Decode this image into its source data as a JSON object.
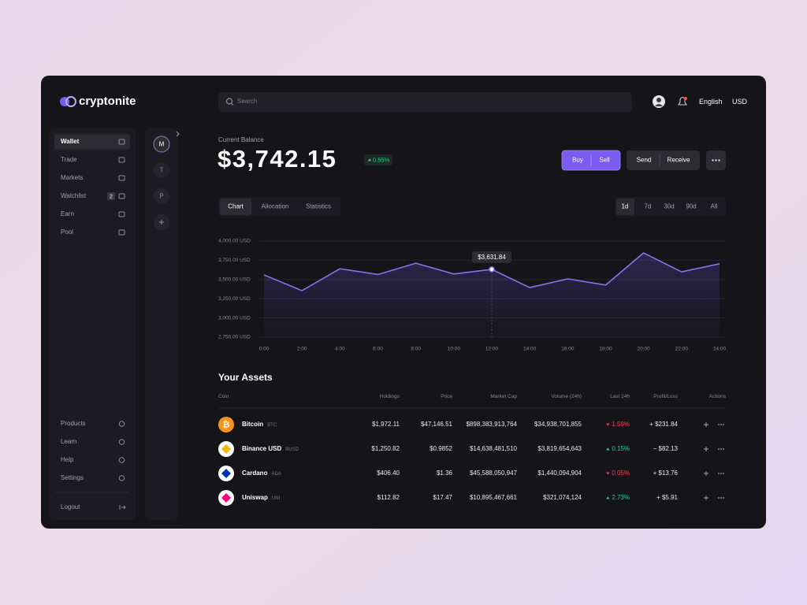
{
  "brand": "cryptonite",
  "search": "Search",
  "language": "English",
  "currency": "USD",
  "nav": [
    {
      "label": "Wallet",
      "active": true
    },
    {
      "label": "Trade"
    },
    {
      "label": "Markets"
    },
    {
      "label": "Watchlist",
      "badge": "2"
    },
    {
      "label": "Earn"
    },
    {
      "label": "Pool"
    }
  ],
  "nav_bottom": [
    "Products",
    "Learn",
    "Help",
    "Settings"
  ],
  "logout": "Logout",
  "accounts": [
    "M",
    "T",
    "P"
  ],
  "balance": {
    "label": "Current Balance",
    "amount": "$3,742.15",
    "change": "0.55%"
  },
  "trade_actions": [
    "Buy",
    "Sell"
  ],
  "transfer_actions": [
    "Send",
    "Receive"
  ],
  "tabs": [
    {
      "label": "Chart",
      "active": true
    },
    {
      "label": "Allocation"
    },
    {
      "label": "Statistics"
    }
  ],
  "ranges": [
    {
      "label": "1d",
      "active": true
    },
    {
      "label": "7d"
    },
    {
      "label": "30d"
    },
    {
      "label": "90d"
    },
    {
      "label": "All"
    }
  ],
  "chart_data": {
    "type": "line",
    "categories": [
      "0:00",
      "2:00",
      "4:00",
      "6:00",
      "8:00",
      "10:00",
      "12:00",
      "14:00",
      "16:00",
      "18:00",
      "20:00",
      "22:00",
      "24:00"
    ],
    "values": [
      3560,
      3355,
      3640,
      3565,
      3712,
      3572,
      3631.84,
      3395,
      3508,
      3428,
      3846,
      3600,
      3705
    ],
    "color": "#8a72ee",
    "ylim": [
      2750,
      4000
    ],
    "yticks": [
      {
        "value": 4000,
        "label": "4,000.00 USD"
      },
      {
        "value": 3750,
        "label": "3,750.00 USD"
      },
      {
        "value": 3500,
        "label": "3,500.00 USD"
      },
      {
        "value": 3250,
        "label": "3,250.00 USD"
      },
      {
        "value": 3000,
        "label": "3,000.00 USD"
      },
      {
        "value": 2750,
        "label": "2,750.00 USD"
      }
    ],
    "grid": true,
    "annotations": [
      {
        "x": "12:00",
        "label": "$3,631.84"
      }
    ]
  },
  "assets": {
    "title": "Your Assets",
    "columns": [
      "Coin",
      "Holdings",
      "Price",
      "Market Cap",
      "Volume (24h)",
      "Last 24h",
      "Profit/Loss",
      "Actions"
    ],
    "rows": [
      {
        "name": "Bitcoin",
        "symbol": "BTC",
        "color": "#f7931a",
        "bg": "#f7931a",
        "holdings": "$1,972.11",
        "price": "$47,146.51",
        "market_cap": "$898,383,913,764",
        "volume": "$34,938,701,855",
        "change": "1.59%",
        "trend": "down",
        "profit": "+ $231.84"
      },
      {
        "name": "Binance USD",
        "symbol": "BUSD",
        "color": "#f0b90b",
        "bg": "#ffffff",
        "holdings": "$1,250.82",
        "price": "$0.9852",
        "market_cap": "$14,638,481,510",
        "volume": "$3,819,654,643",
        "change": "0.15%",
        "trend": "up",
        "profit": "− $82.13"
      },
      {
        "name": "Cardano",
        "symbol": "ADA",
        "color": "#0033ad",
        "bg": "#ffffff",
        "holdings": "$406.40",
        "price": "$1.36",
        "market_cap": "$45,588,050,947",
        "volume": "$1,440,094,904",
        "change": "0.05%",
        "trend": "down",
        "profit": "+ $13.76"
      },
      {
        "name": "Uniswap",
        "symbol": "UNI",
        "color": "#ff007a",
        "bg": "#ffffff",
        "holdings": "$112.82",
        "price": "$17.47",
        "market_cap": "$10,895,467,661",
        "volume": "$321,074,124",
        "change": "2.73%",
        "trend": "up",
        "profit": "+ $5.91"
      }
    ]
  }
}
